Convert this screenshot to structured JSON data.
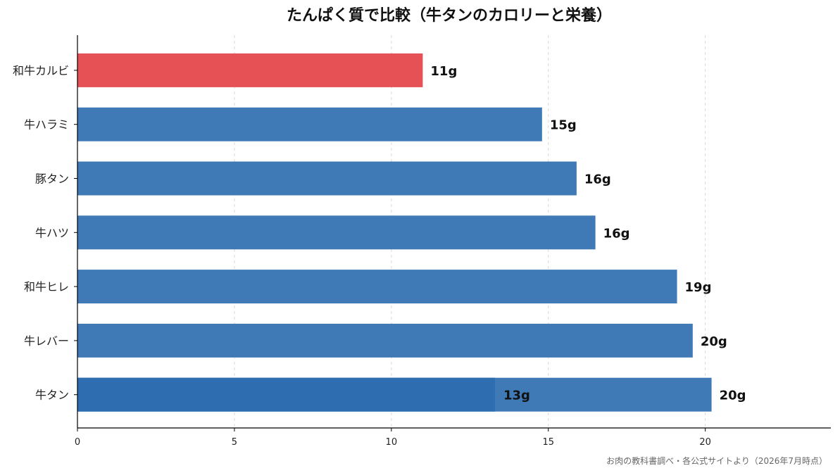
{
  "chart_data": {
    "type": "bar",
    "orientation": "horizontal",
    "title": "たんぱく質で比較（牛タンのカロリーと栄養）",
    "source": "お肉の教科書調べ・各公式サイトより（2026年7月時点）",
    "categories": [
      "和牛カルビ",
      "牛ハラミ",
      "豚タン",
      "牛ハツ",
      "和牛ヒレ",
      "牛レバー",
      "牛タン"
    ],
    "values": [
      11,
      14.8,
      15.9,
      16.5,
      19.1,
      19.6,
      20.2
    ],
    "value_labels": [
      "11g",
      "15g",
      "16g",
      "16g",
      "19g",
      "20g",
      "20g"
    ],
    "highlight_index": 0,
    "inner_segment": {
      "index": 6,
      "value": 13.3,
      "label": "13g"
    },
    "xlim": [
      0,
      24
    ],
    "xticks": [
      0,
      5,
      10,
      15,
      20
    ],
    "xtick_labels": [
      "0",
      "5",
      "10",
      "15",
      "20"
    ],
    "grid": "vertical-dashed",
    "colors": {
      "bar": "#3f7ab6",
      "highlight": "#e65155",
      "inner": "#2d6db0",
      "grid": "#d9d9d9",
      "axis": "#000000"
    }
  }
}
